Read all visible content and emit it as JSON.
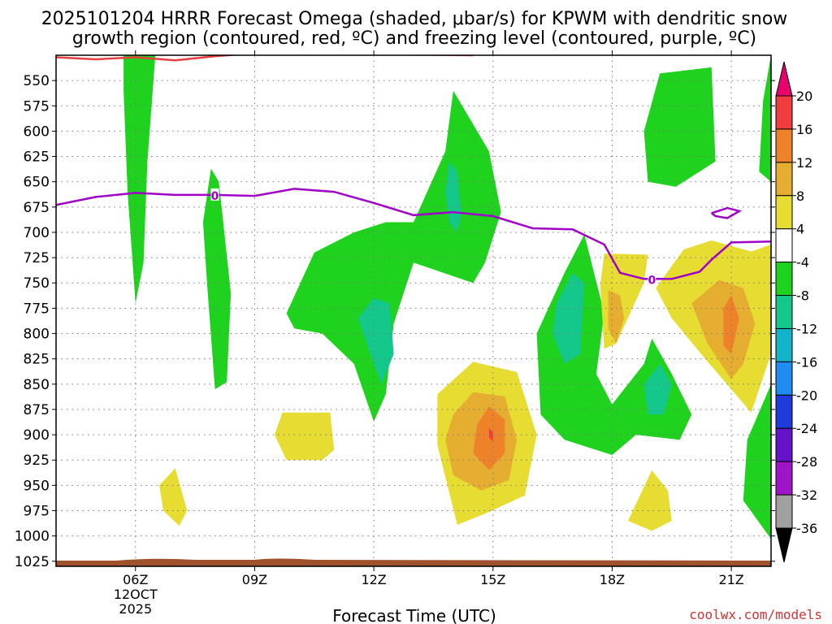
{
  "chart_data": {
    "type": "heatmap",
    "title_line1": "2025101204 HRRR Forecast Omega (shaded, μbar/s) for KPWM with dendritic snow",
    "title_line2": "growth region (contoured, red, ºC) and freezing level (contoured, purple, ºC)",
    "xlabel": "Forecast Time (UTC)",
    "x_ticks": [
      {
        "hour": 6,
        "label": "06Z",
        "sub1": "12OCT",
        "sub2": "2025"
      },
      {
        "hour": 9,
        "label": "09Z"
      },
      {
        "hour": 12,
        "label": "12Z"
      },
      {
        "hour": 15,
        "label": "15Z"
      },
      {
        "hour": 18,
        "label": "18Z"
      },
      {
        "hour": 21,
        "label": "21Z"
      }
    ],
    "x_range_hours": [
      4,
      22
    ],
    "y_ticks": [
      550,
      575,
      600,
      625,
      650,
      675,
      700,
      725,
      750,
      775,
      800,
      825,
      850,
      875,
      900,
      925,
      950,
      975,
      1000,
      1025
    ],
    "y_range_hpa": [
      525,
      1030
    ],
    "colorbar": {
      "levels": [
        20,
        16,
        12,
        8,
        4,
        -4,
        -8,
        -12,
        -16,
        -20,
        -24,
        -28,
        -32,
        -36
      ],
      "bins": [
        {
          "color": "#e8006e"
        },
        {
          "color": "#f03c3c"
        },
        {
          "color": "#ee8228"
        },
        {
          "color": "#e6ae30"
        },
        {
          "color": "#e6dc32"
        },
        {
          "color": "#ffffff"
        },
        {
          "color": "#1ed21e"
        },
        {
          "color": "#14c88c"
        },
        {
          "color": "#14b4c8"
        },
        {
          "color": "#1e8cf0"
        },
        {
          "color": "#1e3cdc"
        },
        {
          "color": "#6414c8"
        },
        {
          "color": "#a014c8"
        },
        {
          "color": "#a0a0a0"
        },
        {
          "color": "#000000"
        }
      ]
    },
    "freezing_level": {
      "color": "#a000c8",
      "label": "0",
      "points": [
        [
          4.0,
          673
        ],
        [
          5.0,
          665
        ],
        [
          6.0,
          661
        ],
        [
          7.0,
          663
        ],
        [
          8.0,
          663
        ],
        [
          9.0,
          664
        ],
        [
          10.0,
          657
        ],
        [
          11.0,
          660
        ],
        [
          12.0,
          671
        ],
        [
          13.0,
          683
        ],
        [
          14.0,
          680
        ],
        [
          15.0,
          684
        ],
        [
          16.0,
          696
        ],
        [
          17.0,
          697
        ],
        [
          17.8,
          712
        ],
        [
          18.2,
          740
        ],
        [
          18.8,
          746
        ],
        [
          19.5,
          746
        ],
        [
          20.2,
          739
        ],
        [
          20.5,
          727
        ],
        [
          21.0,
          710
        ],
        [
          22.0,
          709
        ]
      ],
      "island": [
        [
          20.5,
          681
        ],
        [
          20.9,
          676
        ],
        [
          21.2,
          679
        ],
        [
          20.9,
          686
        ],
        [
          20.6,
          684
        ],
        [
          20.5,
          681
        ]
      ]
    },
    "dgz_contour": {
      "color": "#e84040",
      "points": [
        [
          4.0,
          527
        ],
        [
          5.0,
          529
        ],
        [
          6.0,
          527
        ],
        [
          7.0,
          530
        ],
        [
          8.0,
          526
        ],
        [
          9.0,
          523
        ]
      ],
      "segment2": [
        [
          12.0,
          524
        ],
        [
          14.5,
          525
        ]
      ]
    },
    "omega_regions": [
      {
        "value": -6,
        "points": [
          [
            5.7,
            525
          ],
          [
            6.5,
            525
          ],
          [
            6.3,
            630
          ],
          [
            6.2,
            730
          ],
          [
            6.0,
            770
          ],
          [
            5.8,
            660
          ],
          [
            5.7,
            560
          ]
        ]
      },
      {
        "value": -6,
        "points": [
          [
            7.9,
            637
          ],
          [
            8.1,
            650
          ],
          [
            8.4,
            760
          ],
          [
            8.3,
            848
          ],
          [
            8.0,
            855
          ],
          [
            7.8,
            750
          ],
          [
            7.7,
            690
          ]
        ]
      },
      {
        "value": -6,
        "points": [
          [
            9.8,
            780
          ],
          [
            10.5,
            720
          ],
          [
            11.5,
            700
          ],
          [
            12.3,
            690
          ],
          [
            13.0,
            690
          ],
          [
            13.8,
            620
          ],
          [
            14.0,
            560
          ],
          [
            14.9,
            620
          ],
          [
            15.2,
            680
          ],
          [
            14.8,
            730
          ],
          [
            14.5,
            750
          ],
          [
            13.0,
            730
          ],
          [
            12.5,
            790
          ],
          [
            12.3,
            860
          ],
          [
            12.0,
            887
          ],
          [
            11.5,
            830
          ],
          [
            10.7,
            800
          ],
          [
            10.0,
            795
          ]
        ]
      },
      {
        "value": -6,
        "points": [
          [
            16.1,
            800
          ],
          [
            16.8,
            740
          ],
          [
            17.3,
            702
          ],
          [
            17.8,
            780
          ],
          [
            17.6,
            840
          ],
          [
            18.0,
            870
          ],
          [
            18.8,
            830
          ],
          [
            19.0,
            805
          ],
          [
            19.5,
            840
          ],
          [
            20.0,
            880
          ],
          [
            19.7,
            905
          ],
          [
            18.6,
            900
          ],
          [
            18.0,
            920
          ],
          [
            16.8,
            905
          ],
          [
            16.2,
            880
          ]
        ]
      },
      {
        "value": -6,
        "points": [
          [
            18.8,
            600
          ],
          [
            19.2,
            543
          ],
          [
            20.5,
            537
          ],
          [
            20.6,
            630
          ],
          [
            19.6,
            655
          ],
          [
            18.9,
            650
          ]
        ]
      },
      {
        "value": -6,
        "points": [
          [
            22.0,
            525
          ],
          [
            21.8,
            570
          ],
          [
            21.7,
            640
          ],
          [
            22.0,
            650
          ]
        ]
      },
      {
        "value": -6,
        "points": [
          [
            22.0,
            850
          ],
          [
            21.4,
            905
          ],
          [
            21.3,
            965
          ],
          [
            22.0,
            1003
          ]
        ]
      },
      {
        "value": -10,
        "points": [
          [
            13.9,
            630
          ],
          [
            14.1,
            640
          ],
          [
            14.2,
            680
          ],
          [
            14.1,
            700
          ],
          [
            13.9,
            690
          ],
          [
            13.8,
            660
          ]
        ]
      },
      {
        "value": -10,
        "points": [
          [
            12.0,
            765
          ],
          [
            12.4,
            770
          ],
          [
            12.5,
            820
          ],
          [
            12.2,
            850
          ],
          [
            12.0,
            830
          ],
          [
            11.6,
            785
          ]
        ]
      },
      {
        "value": -10,
        "points": [
          [
            16.6,
            770
          ],
          [
            17.0,
            740
          ],
          [
            17.3,
            750
          ],
          [
            17.2,
            820
          ],
          [
            16.8,
            830
          ],
          [
            16.5,
            800
          ]
        ]
      },
      {
        "value": -10,
        "points": [
          [
            18.8,
            850
          ],
          [
            19.2,
            830
          ],
          [
            19.5,
            850
          ],
          [
            19.3,
            880
          ],
          [
            18.9,
            880
          ]
        ]
      },
      {
        "value": 5,
        "points": [
          [
            9.5,
            900
          ],
          [
            9.7,
            878
          ],
          [
            10.9,
            878
          ],
          [
            11.0,
            915
          ],
          [
            10.7,
            925
          ],
          [
            9.8,
            925
          ]
        ]
      },
      {
        "value": 5,
        "points": [
          [
            7.0,
            933
          ],
          [
            7.3,
            975
          ],
          [
            7.1,
            990
          ],
          [
            6.7,
            975
          ],
          [
            6.6,
            950
          ]
        ]
      },
      {
        "value": 5,
        "points": [
          [
            14.5,
            828
          ],
          [
            15.6,
            838
          ],
          [
            16.1,
            900
          ],
          [
            15.8,
            960
          ],
          [
            14.8,
            978
          ],
          [
            14.1,
            989
          ],
          [
            13.6,
            910
          ],
          [
            13.6,
            860
          ]
        ]
      },
      {
        "value": 5,
        "points": [
          [
            17.7,
            752
          ],
          [
            17.8,
            721
          ],
          [
            18.9,
            722
          ],
          [
            18.8,
            750
          ],
          [
            18.1,
            810
          ],
          [
            17.8,
            815
          ]
        ]
      },
      {
        "value": 5,
        "points": [
          [
            19.1,
            755
          ],
          [
            19.8,
            717
          ],
          [
            20.5,
            708
          ],
          [
            21.5,
            719
          ],
          [
            22.0,
            712
          ],
          [
            22.0,
            820
          ],
          [
            21.5,
            878
          ],
          [
            20.3,
            823
          ],
          [
            19.5,
            785
          ]
        ]
      },
      {
        "value": 5,
        "points": [
          [
            19.0,
            935
          ],
          [
            19.4,
            955
          ],
          [
            19.5,
            985
          ],
          [
            19.0,
            995
          ],
          [
            18.4,
            985
          ]
        ]
      },
      {
        "value": 10,
        "points": [
          [
            14.0,
            880
          ],
          [
            14.5,
            858
          ],
          [
            15.3,
            862
          ],
          [
            15.6,
            905
          ],
          [
            15.4,
            945
          ],
          [
            14.7,
            955
          ],
          [
            14.0,
            940
          ],
          [
            13.8,
            905
          ]
        ]
      },
      {
        "value": 10,
        "points": [
          [
            17.9,
            757
          ],
          [
            18.2,
            762
          ],
          [
            18.3,
            785
          ],
          [
            18.1,
            810
          ],
          [
            17.9,
            795
          ]
        ]
      },
      {
        "value": 10,
        "points": [
          [
            20.0,
            770
          ],
          [
            20.7,
            747
          ],
          [
            21.3,
            755
          ],
          [
            21.6,
            790
          ],
          [
            21.3,
            830
          ],
          [
            21.0,
            845
          ],
          [
            20.4,
            810
          ]
        ]
      },
      {
        "value": 14,
        "points": [
          [
            14.6,
            890
          ],
          [
            14.9,
            872
          ],
          [
            15.3,
            885
          ],
          [
            15.3,
            918
          ],
          [
            14.9,
            935
          ],
          [
            14.5,
            918
          ]
        ]
      },
      {
        "value": 14,
        "points": [
          [
            20.8,
            775
          ],
          [
            21.0,
            762
          ],
          [
            21.2,
            785
          ],
          [
            21.0,
            820
          ],
          [
            20.8,
            812
          ]
        ]
      },
      {
        "value": 18,
        "points": [
          [
            14.9,
            893
          ],
          [
            15.0,
            898
          ],
          [
            15.0,
            906
          ],
          [
            14.9,
            903
          ]
        ]
      }
    ],
    "terrain_color": "#a0522d"
  },
  "credit": "coolwx.com/models"
}
